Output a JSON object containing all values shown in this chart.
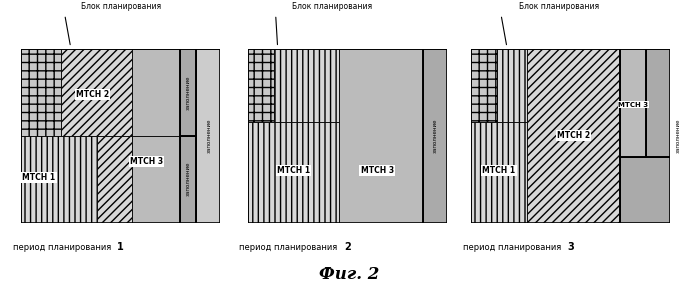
{
  "title": "Фиг. 2",
  "blok_label": "Блок планирования",
  "zapolnenie": "заполнение",
  "period_labels": [
    "период планирования 1",
    "период планирования 2",
    "период планирования 3"
  ],
  "bg_color": "#ffffff"
}
